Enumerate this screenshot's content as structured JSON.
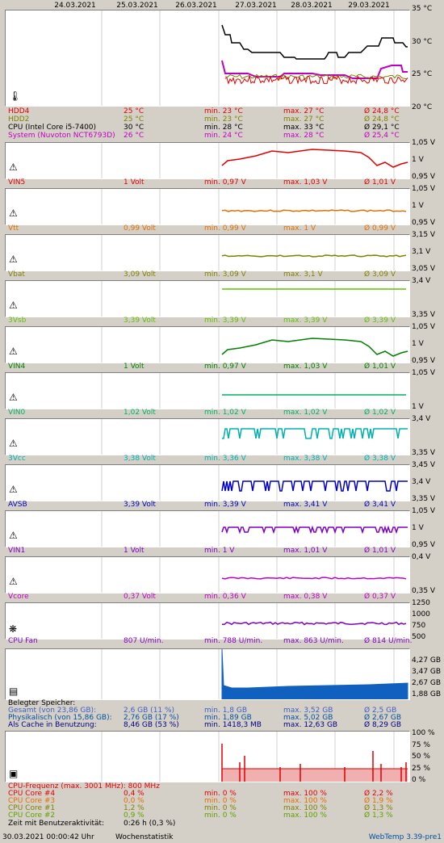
{
  "dates": [
    "24.03.2021",
    "25.03.2021",
    "26.03.2021",
    "27.03.2021",
    "28.03.2021",
    "29.03.2021"
  ],
  "temp": {
    "ylabels": [
      "35 °C",
      "30 °C",
      "25 °C",
      "20 °C"
    ],
    "rows": [
      {
        "name": "HDD4",
        "value": "25 °C",
        "min": "min. 23 °C",
        "max": "max. 27 °C",
        "avg": "Ø 24,8 °C",
        "color": "#e00000"
      },
      {
        "name": "HDD2",
        "value": "25 °C",
        "min": "min. 23 °C",
        "max": "max. 27 °C",
        "avg": "Ø 24,8 °C",
        "color": "#808000"
      },
      {
        "name": "CPU (Intel Core i5-7400)",
        "value": "30 °C",
        "min": "min. 28 °C",
        "max": "max. 33 °C",
        "avg": "Ø 29,1 °C",
        "color": "#000000"
      },
      {
        "name": "System (Nuvoton NCT6793D)",
        "value": "26 °C",
        "min": "min. 24 °C",
        "max": "max. 28 °C",
        "avg": "Ø 25,4 °C",
        "color": "#c000c0"
      }
    ]
  },
  "volts": [
    {
      "name": "VIN5",
      "value": "1 Volt",
      "min": "min. 0,97 V",
      "max": "max. 1,03 V",
      "avg": "Ø 1,01 V",
      "color": "#e00000",
      "ylabels": [
        "1,05 V",
        "1 V",
        "0,95 V"
      ]
    },
    {
      "name": "Vtt",
      "value": "0,99 Volt",
      "min": "min. 0,99 V",
      "max": "max. 1 V",
      "avg": "Ø 0,99 V",
      "color": "#e07000",
      "ylabels": [
        "1,05 V",
        "1 V",
        "0,95 V"
      ]
    },
    {
      "name": "Vbat",
      "value": "3,09 Volt",
      "min": "min. 3,09 V",
      "max": "max. 3,1 V",
      "avg": "Ø 3,09 V",
      "color": "#808000",
      "ylabels": [
        "3,15 V",
        "3,1 V",
        "3,05 V"
      ]
    },
    {
      "name": "3Vsb",
      "value": "3,39 Volt",
      "min": "min. 3,39 V",
      "max": "max. 3,39 V",
      "avg": "Ø 3,39 V",
      "color": "#60c000",
      "ylabels": [
        "3,4 V",
        "",
        "3,35 V"
      ]
    },
    {
      "name": "VIN4",
      "value": "1 Volt",
      "min": "min. 0,97 V",
      "max": "max. 1,03 V",
      "avg": "Ø 1,01 V",
      "color": "#008000",
      "ylabels": [
        "1,05 V",
        "1 V",
        "0,95 V"
      ]
    },
    {
      "name": "VIN0",
      "value": "1,02 Volt",
      "min": "min. 1,02 V",
      "max": "max. 1,02 V",
      "avg": "Ø 1,02 V",
      "color": "#00b060",
      "ylabels": [
        "1,05 V",
        "",
        "1 V"
      ]
    },
    {
      "name": "3Vcc",
      "value": "3,38 Volt",
      "min": "min. 3,36 V",
      "max": "max. 3,38 V",
      "avg": "Ø 3,38 V",
      "color": "#00b0b0",
      "ylabels": [
        "3,4 V",
        "",
        "3,35 V"
      ]
    },
    {
      "name": "AVSB",
      "value": "3,39 Volt",
      "min": "min. 3,39 V",
      "max": "max. 3,41 V",
      "avg": "Ø 3,41 V",
      "color": "#0000c0",
      "ylabels": [
        "3,45 V",
        "3,4 V",
        "3,35 V"
      ]
    },
    {
      "name": "VIN1",
      "value": "1 Volt",
      "min": "min. 1 V",
      "max": "max. 1,01 V",
      "avg": "Ø 1,01 V",
      "color": "#8000c0",
      "ylabels": [
        "1,05 V",
        "1 V",
        "0,95 V"
      ]
    },
    {
      "name": "Vcore",
      "value": "0,37 Volt",
      "min": "min. 0,36 V",
      "max": "max. 0,38 V",
      "avg": "Ø 0,37 V",
      "color": "#c000c0",
      "ylabels": [
        "0,4 V",
        "",
        "0,35 V"
      ]
    }
  ],
  "fan": {
    "name": "CPU Fan",
    "value": "807 U/min.",
    "min": "min. 788 U/min.",
    "max": "max. 863 U/min.",
    "avg": "Ø 814 U/min.",
    "color": "#8000c0",
    "ylabels": [
      "1250",
      "1000",
      "750",
      "500"
    ]
  },
  "memory": {
    "ylabels": [
      "4,27 GB",
      "3,47 GB",
      "2,67 GB",
      "1,88 GB"
    ],
    "title": "Belegter Speicher:",
    "rows": [
      {
        "name": "Gesamt (von 23,86 GB):",
        "value": "2,6 GB (11 %)",
        "min": "min. 1,8 GB",
        "max": "max. 3,52 GB",
        "avg": "Ø 2,5 GB",
        "color": "#4060c0"
      },
      {
        "name": "Physikalisch (von 15,86 GB):",
        "value": "2,76 GB (17 %)",
        "min": "min. 1,89 GB",
        "max": "max. 5,02 GB",
        "avg": "Ø 2,67 GB",
        "color": "#0050a0"
      },
      {
        "name": "Als Cache in Benutzung:",
        "value": "8,46 GB (53 %)",
        "min": "min. 1418,3 MB",
        "max": "max. 12,63 GB",
        "avg": "Ø 8,29 GB",
        "color": "#000080"
      }
    ]
  },
  "cpu": {
    "ylabels": [
      "100 %",
      "75 %",
      "50 %",
      "25 %",
      "0 %"
    ],
    "freq": "CPU-Frequenz (max. 3001 MHz): 800 MHz",
    "rows": [
      {
        "name": "CPU Core #4",
        "value": "0,4 %",
        "min": "min. 0 %",
        "max": "max. 100 %",
        "avg": "Ø 2,2 %",
        "color": "#e00000"
      },
      {
        "name": "CPU Core #3",
        "value": "0,0 %",
        "min": "min. 0 %",
        "max": "max. 100 %",
        "avg": "Ø 1,9 %",
        "color": "#e07000"
      },
      {
        "name": "CPU Core #1",
        "value": "1,2 %",
        "min": "min. 0 %",
        "max": "max. 100 %",
        "avg": "Ø 1,3 %",
        "color": "#808000"
      },
      {
        "name": "CPU Core #2",
        "value": "0,9 %",
        "min": "min. 0 %",
        "max": "max. 100 %",
        "avg": "Ø 1,3 %",
        "color": "#60a000"
      }
    ],
    "activity_label": "Zeit mit Benutzeraktivität:",
    "activity_value": "0:26 h (0,3 %)"
  },
  "footer": {
    "timestamp": "30.03.2021 00:00:42 Uhr",
    "mode": "Wochenstatistik",
    "version": "WebTemp 3.39-pre1",
    "version_color": "#0050a0"
  }
}
